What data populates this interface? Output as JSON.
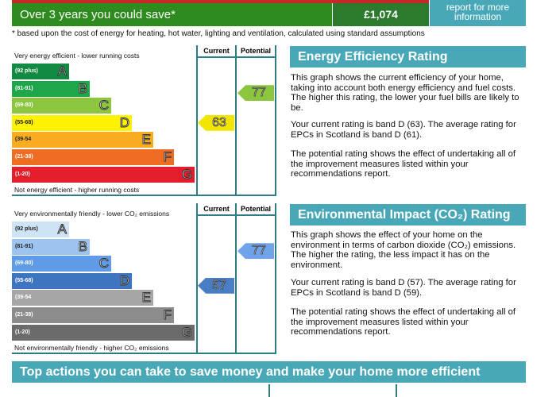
{
  "savings": {
    "label": "Over 3 years you could save*",
    "value": "£1,074",
    "more_info": "report for more information"
  },
  "footnote": "* based upon the cost of energy for heating, hot water, lighting and ventilation, calculated using standard assumptions",
  "energy": {
    "top": "Very energy efficient - lower running costs",
    "bottom": "Not energy efficient - higher running costs",
    "current_label": "Current",
    "potential_label": "Potential",
    "current": "63",
    "potential": "77",
    "current_color": "#f2e600",
    "potential_color": "#8cc63f",
    "bands": [
      {
        "range": "(92 plus)",
        "letter": "A",
        "color": "#138a43"
      },
      {
        "range": "(81-91)",
        "letter": "B",
        "color": "#1fa64a"
      },
      {
        "range": "(69-80)",
        "letter": "C",
        "color": "#8cc63f"
      },
      {
        "range": "(55-68)",
        "letter": "D",
        "color": "#fff200"
      },
      {
        "range": "(39-54",
        "letter": "E",
        "color": "#f7ad1f"
      },
      {
        "range": "(21-38)",
        "letter": "F",
        "color": "#ee6d23"
      },
      {
        "range": "(1-20)",
        "letter": "G",
        "color": "#e31d2b"
      }
    ]
  },
  "environment": {
    "top": "Very environmentally friendly - lower CO₂ emissions",
    "bottom": "Not environmentally friendly - higher CO₂ emissions",
    "current_label": "Current",
    "potential_label": "Potential",
    "current": "57",
    "potential": "77",
    "current_color": "#4a7ec4",
    "potential_color": "#6fa3ea",
    "bands": [
      {
        "range": "(92 plus)",
        "letter": "A",
        "color": "#cfe3f7"
      },
      {
        "range": "(81-91)",
        "letter": "B",
        "color": "#9cc4ee"
      },
      {
        "range": "(69-80)",
        "letter": "C",
        "color": "#5f9be6"
      },
      {
        "range": "(55-68)",
        "letter": "D",
        "color": "#3d75c0"
      },
      {
        "range": "(39-54",
        "letter": "E",
        "color": "#a6a6a6"
      },
      {
        "range": "(21-38)",
        "letter": "F",
        "color": "#8c8c8c"
      },
      {
        "range": "(1-20)",
        "letter": "G",
        "color": "#6b6b6b"
      }
    ]
  },
  "eer": {
    "title": "Energy Efficiency Rating",
    "p1": "This graph shows the current efficiency of your home, taking into account both energy efficiency and fuel costs. The higher this rating, the lower your fuel bills are likely to be.",
    "p2": "Your current rating is band D (63). The average rating for EPCs in Scotland is band D (61).",
    "p3": "The potential rating shows the effect of undertaking all of the improvement measures listed within your recommendations report."
  },
  "eir": {
    "title": "Environmental Impact (CO₂) Rating",
    "p1": "This graph shows the effect of your home on the environment in terms of carbon dioxide (CO₂) emissions. The higher the rating, the less impact it has on the environment.",
    "p2": "Your current rating is band D (57). The average rating for EPCs in Scotland is band D (59).",
    "p3": "The potential rating shows the effect of undertaking all of the improvement measures listed within your recommendations report."
  },
  "actions_title": "Top actions you can take to save money and make your home more efficient"
}
